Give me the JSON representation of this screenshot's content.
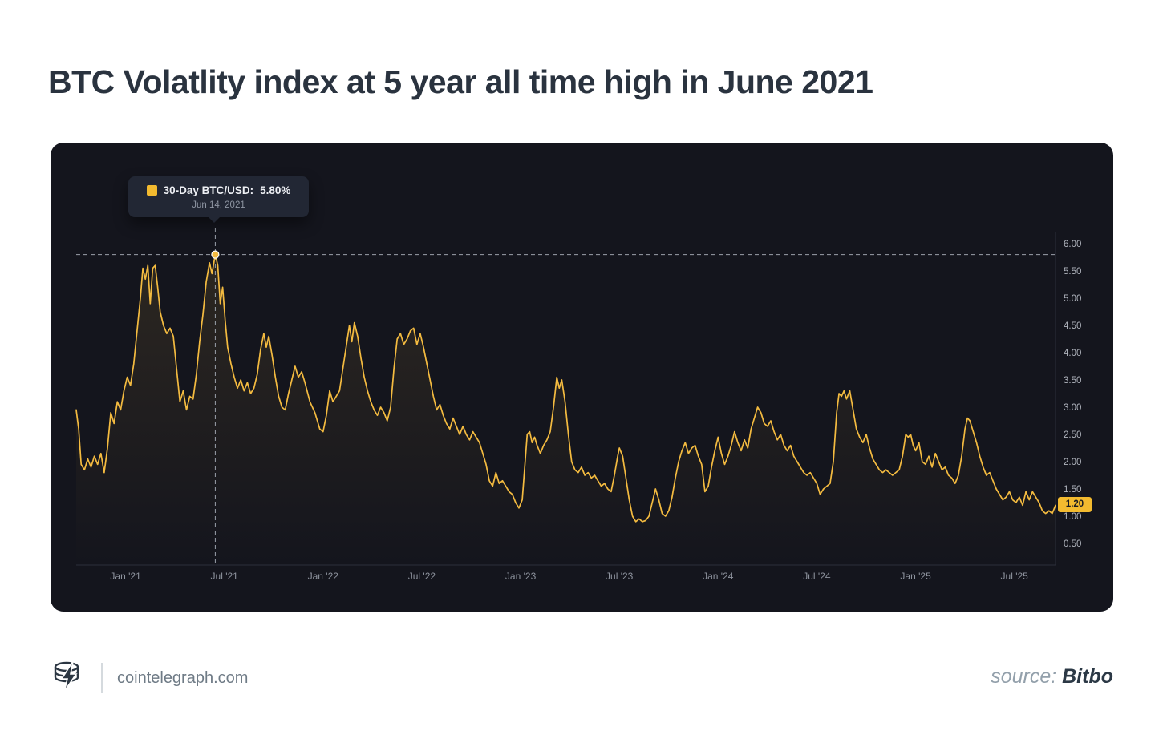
{
  "page": {
    "title": "BTC Volatlity index at 5 year all time high in June 2021"
  },
  "tooltip": {
    "series_label": "30-Day BTC/USD:",
    "value": "5.80%",
    "date": "Jun 14, 2021"
  },
  "footer": {
    "site": "cointelegraph.com",
    "source_label": "source: ",
    "source_name": "Bitbo"
  },
  "colors": {
    "accent": "#f3ba2f",
    "line": "#f4bb40",
    "panel_bg": "#14151d",
    "title_text": "#2a333f",
    "axis_text": "#8e939e"
  },
  "chart_data": {
    "type": "line",
    "title": "BTC Volatlity index at 5 year all time high in June 2021",
    "series_name": "30-Day BTC/USD",
    "ylabel": "",
    "xlabel": "",
    "ylim": [
      0.5,
      6.0
    ],
    "x_total_months": 59.5,
    "x_start": "Oct 2020",
    "grid": false,
    "legend": "none",
    "line_color": "#f4bb40",
    "highlight": {
      "m": 8.45,
      "value": 5.8,
      "date": "Jun 14, 2021",
      "label": "30-Day BTC/USD: 5.80%"
    },
    "last_value": 1.2,
    "last_value_label": "1.20",
    "y_ticks": [
      {
        "label": "6.00",
        "v": 6.0
      },
      {
        "label": "5.50",
        "v": 5.5
      },
      {
        "label": "5.00",
        "v": 5.0
      },
      {
        "label": "4.50",
        "v": 4.5
      },
      {
        "label": "4.00",
        "v": 4.0
      },
      {
        "label": "3.50",
        "v": 3.5
      },
      {
        "label": "3.00",
        "v": 3.0
      },
      {
        "label": "2.50",
        "v": 2.5
      },
      {
        "label": "2.00",
        "v": 2.0
      },
      {
        "label": "1.50",
        "v": 1.5
      },
      {
        "label": "1.00",
        "v": 1.0
      },
      {
        "label": "0.50",
        "v": 0.5
      }
    ],
    "x_ticks": [
      {
        "label": "Jan '21",
        "m": 3
      },
      {
        "label": "Jul '21",
        "m": 9
      },
      {
        "label": "Jan '22",
        "m": 15
      },
      {
        "label": "Jul '22",
        "m": 21
      },
      {
        "label": "Jan '23",
        "m": 27
      },
      {
        "label": "Jul '23",
        "m": 33
      },
      {
        "label": "Jan '24",
        "m": 39
      },
      {
        "label": "Jul '24",
        "m": 45
      },
      {
        "label": "Jan '25",
        "m": 51
      },
      {
        "label": "Jul '25",
        "m": 57
      }
    ],
    "points": [
      [
        0,
        2.95
      ],
      [
        0.15,
        2.6
      ],
      [
        0.3,
        1.95
      ],
      [
        0.5,
        1.85
      ],
      [
        0.7,
        2.05
      ],
      [
        0.9,
        1.9
      ],
      [
        1.1,
        2.1
      ],
      [
        1.3,
        1.95
      ],
      [
        1.5,
        2.15
      ],
      [
        1.7,
        1.8
      ],
      [
        1.9,
        2.25
      ],
      [
        2.1,
        2.9
      ],
      [
        2.3,
        2.7
      ],
      [
        2.5,
        3.1
      ],
      [
        2.7,
        2.95
      ],
      [
        2.9,
        3.3
      ],
      [
        3.1,
        3.55
      ],
      [
        3.3,
        3.4
      ],
      [
        3.5,
        3.8
      ],
      [
        3.7,
        4.4
      ],
      [
        3.9,
        5.0
      ],
      [
        4.05,
        5.55
      ],
      [
        4.2,
        5.35
      ],
      [
        4.35,
        5.6
      ],
      [
        4.5,
        4.9
      ],
      [
        4.65,
        5.55
      ],
      [
        4.8,
        5.6
      ],
      [
        4.95,
        5.2
      ],
      [
        5.1,
        4.75
      ],
      [
        5.3,
        4.5
      ],
      [
        5.5,
        4.35
      ],
      [
        5.7,
        4.45
      ],
      [
        5.9,
        4.3
      ],
      [
        6.1,
        3.7
      ],
      [
        6.3,
        3.1
      ],
      [
        6.5,
        3.3
      ],
      [
        6.7,
        2.95
      ],
      [
        6.9,
        3.2
      ],
      [
        7.1,
        3.15
      ],
      [
        7.3,
        3.6
      ],
      [
        7.5,
        4.2
      ],
      [
        7.7,
        4.7
      ],
      [
        7.9,
        5.3
      ],
      [
        8.1,
        5.65
      ],
      [
        8.25,
        5.45
      ],
      [
        8.45,
        5.8
      ],
      [
        8.6,
        5.6
      ],
      [
        8.75,
        4.9
      ],
      [
        8.9,
        5.2
      ],
      [
        9.05,
        4.6
      ],
      [
        9.2,
        4.1
      ],
      [
        9.4,
        3.8
      ],
      [
        9.6,
        3.55
      ],
      [
        9.8,
        3.35
      ],
      [
        10.0,
        3.5
      ],
      [
        10.2,
        3.3
      ],
      [
        10.4,
        3.45
      ],
      [
        10.6,
        3.25
      ],
      [
        10.8,
        3.35
      ],
      [
        11.0,
        3.6
      ],
      [
        11.2,
        4.05
      ],
      [
        11.4,
        4.35
      ],
      [
        11.55,
        4.1
      ],
      [
        11.7,
        4.3
      ],
      [
        11.9,
        3.95
      ],
      [
        12.1,
        3.55
      ],
      [
        12.3,
        3.2
      ],
      [
        12.5,
        3.0
      ],
      [
        12.7,
        2.95
      ],
      [
        12.9,
        3.25
      ],
      [
        13.1,
        3.5
      ],
      [
        13.3,
        3.75
      ],
      [
        13.5,
        3.55
      ],
      [
        13.7,
        3.65
      ],
      [
        13.9,
        3.45
      ],
      [
        14.2,
        3.1
      ],
      [
        14.5,
        2.9
      ],
      [
        14.8,
        2.6
      ],
      [
        15.0,
        2.55
      ],
      [
        15.2,
        2.85
      ],
      [
        15.4,
        3.3
      ],
      [
        15.6,
        3.1
      ],
      [
        15.8,
        3.2
      ],
      [
        16.0,
        3.3
      ],
      [
        16.2,
        3.7
      ],
      [
        16.4,
        4.1
      ],
      [
        16.6,
        4.5
      ],
      [
        16.75,
        4.2
      ],
      [
        16.9,
        4.55
      ],
      [
        17.1,
        4.3
      ],
      [
        17.3,
        3.9
      ],
      [
        17.5,
        3.55
      ],
      [
        17.7,
        3.3
      ],
      [
        17.9,
        3.1
      ],
      [
        18.1,
        2.95
      ],
      [
        18.3,
        2.85
      ],
      [
        18.5,
        3.0
      ],
      [
        18.7,
        2.9
      ],
      [
        18.9,
        2.75
      ],
      [
        19.1,
        3.0
      ],
      [
        19.3,
        3.7
      ],
      [
        19.5,
        4.25
      ],
      [
        19.7,
        4.35
      ],
      [
        19.9,
        4.15
      ],
      [
        20.1,
        4.25
      ],
      [
        20.3,
        4.4
      ],
      [
        20.5,
        4.45
      ],
      [
        20.7,
        4.15
      ],
      [
        20.9,
        4.35
      ],
      [
        21.1,
        4.1
      ],
      [
        21.3,
        3.8
      ],
      [
        21.5,
        3.5
      ],
      [
        21.7,
        3.2
      ],
      [
        21.9,
        2.95
      ],
      [
        22.1,
        3.05
      ],
      [
        22.3,
        2.85
      ],
      [
        22.5,
        2.7
      ],
      [
        22.7,
        2.6
      ],
      [
        22.9,
        2.8
      ],
      [
        23.1,
        2.65
      ],
      [
        23.3,
        2.5
      ],
      [
        23.5,
        2.65
      ],
      [
        23.7,
        2.5
      ],
      [
        23.9,
        2.4
      ],
      [
        24.1,
        2.55
      ],
      [
        24.3,
        2.45
      ],
      [
        24.5,
        2.35
      ],
      [
        24.7,
        2.15
      ],
      [
        24.9,
        1.95
      ],
      [
        25.1,
        1.65
      ],
      [
        25.3,
        1.55
      ],
      [
        25.5,
        1.8
      ],
      [
        25.7,
        1.6
      ],
      [
        25.9,
        1.65
      ],
      [
        26.1,
        1.55
      ],
      [
        26.3,
        1.45
      ],
      [
        26.5,
        1.4
      ],
      [
        26.7,
        1.25
      ],
      [
        26.9,
        1.15
      ],
      [
        27.1,
        1.3
      ],
      [
        27.25,
        1.9
      ],
      [
        27.4,
        2.5
      ],
      [
        27.55,
        2.55
      ],
      [
        27.7,
        2.35
      ],
      [
        27.85,
        2.45
      ],
      [
        28.0,
        2.3
      ],
      [
        28.2,
        2.15
      ],
      [
        28.4,
        2.3
      ],
      [
        28.6,
        2.4
      ],
      [
        28.8,
        2.55
      ],
      [
        29.0,
        3.0
      ],
      [
        29.2,
        3.55
      ],
      [
        29.35,
        3.35
      ],
      [
        29.5,
        3.5
      ],
      [
        29.7,
        3.1
      ],
      [
        29.9,
        2.5
      ],
      [
        30.1,
        2.0
      ],
      [
        30.3,
        1.85
      ],
      [
        30.5,
        1.8
      ],
      [
        30.7,
        1.9
      ],
      [
        30.9,
        1.75
      ],
      [
        31.1,
        1.8
      ],
      [
        31.3,
        1.7
      ],
      [
        31.5,
        1.75
      ],
      [
        31.7,
        1.65
      ],
      [
        31.9,
        1.55
      ],
      [
        32.1,
        1.6
      ],
      [
        32.3,
        1.5
      ],
      [
        32.5,
        1.45
      ],
      [
        32.7,
        1.75
      ],
      [
        32.9,
        2.1
      ],
      [
        33.0,
        2.25
      ],
      [
        33.2,
        2.1
      ],
      [
        33.4,
        1.7
      ],
      [
        33.6,
        1.3
      ],
      [
        33.8,
        1.0
      ],
      [
        34.0,
        0.9
      ],
      [
        34.2,
        0.95
      ],
      [
        34.4,
        0.9
      ],
      [
        34.6,
        0.92
      ],
      [
        34.8,
        1.0
      ],
      [
        35.0,
        1.25
      ],
      [
        35.2,
        1.5
      ],
      [
        35.4,
        1.3
      ],
      [
        35.6,
        1.05
      ],
      [
        35.8,
        1.0
      ],
      [
        36.0,
        1.1
      ],
      [
        36.2,
        1.35
      ],
      [
        36.4,
        1.7
      ],
      [
        36.6,
        2.0
      ],
      [
        36.8,
        2.2
      ],
      [
        37.0,
        2.35
      ],
      [
        37.2,
        2.15
      ],
      [
        37.4,
        2.25
      ],
      [
        37.6,
        2.3
      ],
      [
        37.8,
        2.1
      ],
      [
        38.0,
        1.95
      ],
      [
        38.2,
        1.45
      ],
      [
        38.4,
        1.55
      ],
      [
        38.6,
        1.9
      ],
      [
        38.8,
        2.2
      ],
      [
        39.0,
        2.45
      ],
      [
        39.2,
        2.15
      ],
      [
        39.4,
        1.95
      ],
      [
        39.6,
        2.1
      ],
      [
        39.8,
        2.3
      ],
      [
        40.0,
        2.55
      ],
      [
        40.2,
        2.35
      ],
      [
        40.4,
        2.2
      ],
      [
        40.6,
        2.4
      ],
      [
        40.8,
        2.25
      ],
      [
        41.0,
        2.6
      ],
      [
        41.2,
        2.8
      ],
      [
        41.4,
        3.0
      ],
      [
        41.6,
        2.9
      ],
      [
        41.8,
        2.7
      ],
      [
        42.0,
        2.65
      ],
      [
        42.2,
        2.75
      ],
      [
        42.4,
        2.55
      ],
      [
        42.6,
        2.4
      ],
      [
        42.8,
        2.5
      ],
      [
        43.0,
        2.3
      ],
      [
        43.2,
        2.2
      ],
      [
        43.4,
        2.3
      ],
      [
        43.6,
        2.1
      ],
      [
        43.8,
        2.0
      ],
      [
        44.0,
        1.9
      ],
      [
        44.2,
        1.8
      ],
      [
        44.4,
        1.75
      ],
      [
        44.6,
        1.8
      ],
      [
        44.8,
        1.7
      ],
      [
        45.0,
        1.6
      ],
      [
        45.2,
        1.4
      ],
      [
        45.4,
        1.5
      ],
      [
        45.6,
        1.55
      ],
      [
        45.8,
        1.6
      ],
      [
        46.0,
        2.0
      ],
      [
        46.2,
        2.9
      ],
      [
        46.35,
        3.25
      ],
      [
        46.5,
        3.2
      ],
      [
        46.65,
        3.3
      ],
      [
        46.8,
        3.15
      ],
      [
        47.0,
        3.3
      ],
      [
        47.2,
        2.95
      ],
      [
        47.4,
        2.6
      ],
      [
        47.6,
        2.45
      ],
      [
        47.8,
        2.35
      ],
      [
        48.0,
        2.5
      ],
      [
        48.2,
        2.25
      ],
      [
        48.4,
        2.05
      ],
      [
        48.6,
        1.95
      ],
      [
        48.8,
        1.85
      ],
      [
        49.0,
        1.8
      ],
      [
        49.2,
        1.85
      ],
      [
        49.4,
        1.8
      ],
      [
        49.6,
        1.75
      ],
      [
        49.8,
        1.8
      ],
      [
        50.0,
        1.85
      ],
      [
        50.2,
        2.1
      ],
      [
        50.4,
        2.5
      ],
      [
        50.55,
        2.45
      ],
      [
        50.7,
        2.5
      ],
      [
        50.85,
        2.3
      ],
      [
        51.0,
        2.2
      ],
      [
        51.2,
        2.35
      ],
      [
        51.4,
        2.0
      ],
      [
        51.6,
        1.95
      ],
      [
        51.8,
        2.1
      ],
      [
        52.0,
        1.9
      ],
      [
        52.2,
        2.15
      ],
      [
        52.4,
        2.0
      ],
      [
        52.6,
        1.85
      ],
      [
        52.8,
        1.9
      ],
      [
        53.0,
        1.75
      ],
      [
        53.2,
        1.7
      ],
      [
        53.4,
        1.6
      ],
      [
        53.6,
        1.75
      ],
      [
        53.8,
        2.1
      ],
      [
        54.0,
        2.6
      ],
      [
        54.15,
        2.8
      ],
      [
        54.3,
        2.75
      ],
      [
        54.5,
        2.55
      ],
      [
        54.7,
        2.35
      ],
      [
        54.9,
        2.1
      ],
      [
        55.1,
        1.9
      ],
      [
        55.3,
        1.75
      ],
      [
        55.5,
        1.8
      ],
      [
        55.7,
        1.65
      ],
      [
        55.9,
        1.5
      ],
      [
        56.1,
        1.4
      ],
      [
        56.3,
        1.3
      ],
      [
        56.5,
        1.35
      ],
      [
        56.7,
        1.45
      ],
      [
        56.9,
        1.3
      ],
      [
        57.1,
        1.25
      ],
      [
        57.3,
        1.35
      ],
      [
        57.5,
        1.2
      ],
      [
        57.7,
        1.45
      ],
      [
        57.9,
        1.3
      ],
      [
        58.1,
        1.45
      ],
      [
        58.3,
        1.35
      ],
      [
        58.5,
        1.25
      ],
      [
        58.7,
        1.1
      ],
      [
        58.9,
        1.05
      ],
      [
        59.1,
        1.1
      ],
      [
        59.3,
        1.05
      ],
      [
        59.5,
        1.2
      ]
    ]
  }
}
